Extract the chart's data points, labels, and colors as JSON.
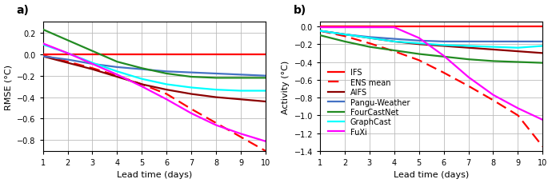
{
  "lead_time": [
    1,
    2,
    3,
    4,
    5,
    6,
    7,
    8,
    9,
    10
  ],
  "rmse": {
    "IFS": [
      0.0,
      0.0,
      0.0,
      0.0,
      0.0,
      0.0,
      0.0,
      0.0,
      0.0,
      0.0
    ],
    "ENS_mean": [
      -0.01,
      -0.07,
      -0.13,
      -0.2,
      -0.28,
      -0.37,
      -0.51,
      -0.64,
      -0.77,
      -0.9
    ],
    "AIFS": [
      -0.02,
      -0.08,
      -0.14,
      -0.21,
      -0.28,
      -0.33,
      -0.37,
      -0.4,
      -0.42,
      -0.44
    ],
    "Pangu": [
      -0.02,
      -0.05,
      -0.09,
      -0.12,
      -0.14,
      -0.16,
      -0.17,
      -0.18,
      -0.19,
      -0.2
    ],
    "FourCastNet": [
      0.23,
      0.13,
      0.03,
      -0.07,
      -0.13,
      -0.18,
      -0.21,
      -0.22,
      -0.22,
      -0.22
    ],
    "GraphCast": [
      0.09,
      0.01,
      -0.08,
      -0.16,
      -0.23,
      -0.28,
      -0.31,
      -0.33,
      -0.34,
      -0.34
    ],
    "FuXi": [
      0.1,
      0.01,
      -0.09,
      -0.19,
      -0.3,
      -0.42,
      -0.55,
      -0.66,
      -0.74,
      -0.81
    ]
  },
  "activity": {
    "IFS": [
      0.0,
      0.0,
      0.0,
      0.0,
      0.0,
      0.0,
      0.0,
      0.0,
      0.0,
      0.0
    ],
    "ENS_mean": [
      -0.05,
      -0.11,
      -0.19,
      -0.28,
      -0.38,
      -0.52,
      -0.67,
      -0.83,
      -1.0,
      -1.35
    ],
    "AIFS": [
      -0.05,
      -0.09,
      -0.13,
      -0.17,
      -0.2,
      -0.22,
      -0.24,
      -0.26,
      -0.28,
      -0.3
    ],
    "Pangu": [
      -0.05,
      -0.09,
      -0.12,
      -0.14,
      -0.16,
      -0.17,
      -0.17,
      -0.17,
      -0.17,
      -0.17
    ],
    "FourCastNet": [
      -0.1,
      -0.17,
      -0.23,
      -0.27,
      -0.31,
      -0.34,
      -0.37,
      -0.39,
      -0.4,
      -0.41
    ],
    "GraphCast": [
      -0.05,
      -0.09,
      -0.13,
      -0.17,
      -0.19,
      -0.21,
      -0.22,
      -0.23,
      -0.24,
      -0.22
    ],
    "FuXi": [
      -0.01,
      -0.01,
      -0.01,
      -0.01,
      -0.13,
      -0.33,
      -0.57,
      -0.77,
      -0.92,
      -1.05
    ]
  },
  "colors": {
    "IFS": "#FF0000",
    "ENS_mean": "#FF0000",
    "AIFS": "#8B0000",
    "Pangu": "#4472C4",
    "FourCastNet": "#228B22",
    "GraphCast": "#00FFFF",
    "FuXi": "#FF00FF"
  },
  "ylim_rmse": [
    -0.9,
    0.3
  ],
  "ylim_activity": [
    -1.4,
    0.05
  ],
  "yticks_rmse": [
    -0.8,
    -0.6,
    -0.4,
    -0.2,
    0.0,
    0.2
  ],
  "yticks_activity": [
    -1.4,
    -1.2,
    -1.0,
    -0.8,
    -0.6,
    -0.4,
    -0.2,
    0.0
  ],
  "bg_color": "#FFFFFF",
  "grid_color": "#BBBBBB"
}
